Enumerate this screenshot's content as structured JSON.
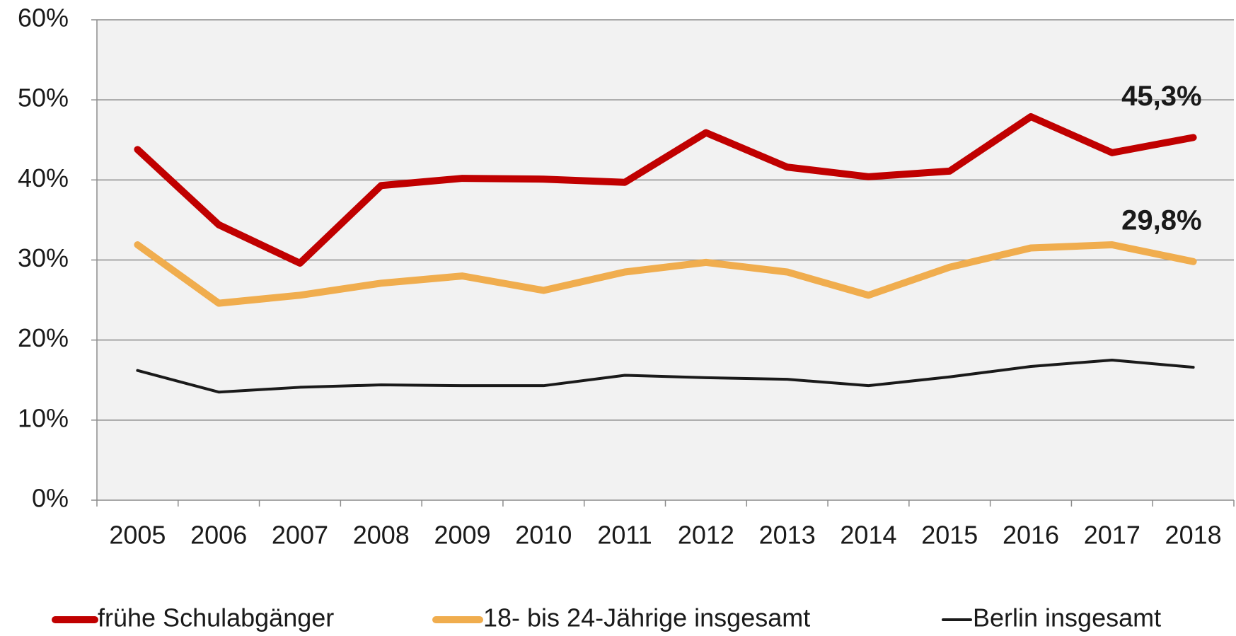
{
  "chart_data": {
    "type": "line",
    "categories": [
      "2005",
      "2006",
      "2007",
      "2008",
      "2009",
      "2010",
      "2011",
      "2012",
      "2013",
      "2014",
      "2015",
      "2016",
      "2017",
      "2018"
    ],
    "series": [
      {
        "name": "frühe Schulabgänger",
        "color": "#c00000",
        "values": [
          43.8,
          34.4,
          29.6,
          39.3,
          40.2,
          40.1,
          39.7,
          45.9,
          41.6,
          40.4,
          41.1,
          47.9,
          43.4,
          45.3
        ],
        "value_labels": [
          null,
          null,
          null,
          null,
          null,
          null,
          null,
          null,
          null,
          null,
          null,
          null,
          null,
          "45,3%"
        ]
      },
      {
        "name": "18- bis 24-Jährige insgesamt",
        "color": "#f0ad4e",
        "values": [
          31.9,
          24.6,
          25.6,
          27.1,
          28.0,
          26.2,
          28.5,
          29.7,
          28.5,
          25.6,
          29.1,
          31.5,
          31.9,
          29.8
        ],
        "value_labels": [
          null,
          null,
          null,
          null,
          null,
          null,
          null,
          null,
          null,
          null,
          null,
          null,
          null,
          "29,8%"
        ]
      },
      {
        "name": "Berlin insgesamt",
        "color": "#1a1a1a",
        "values": [
          16.2,
          13.5,
          14.1,
          14.4,
          14.3,
          14.3,
          15.6,
          15.3,
          15.1,
          14.3,
          15.4,
          16.7,
          17.5,
          16.6
        ]
      }
    ],
    "ylim": [
      0,
      60
    ],
    "yticks": [
      {
        "value": 0,
        "label": "0%"
      },
      {
        "value": 10,
        "label": "10%"
      },
      {
        "value": 20,
        "label": "20%"
      },
      {
        "value": 30,
        "label": "30%"
      },
      {
        "value": 40,
        "label": "40%"
      },
      {
        "value": 50,
        "label": "50%"
      },
      {
        "value": 60,
        "label": "60%"
      }
    ],
    "grid": true,
    "legend": "bottom"
  }
}
